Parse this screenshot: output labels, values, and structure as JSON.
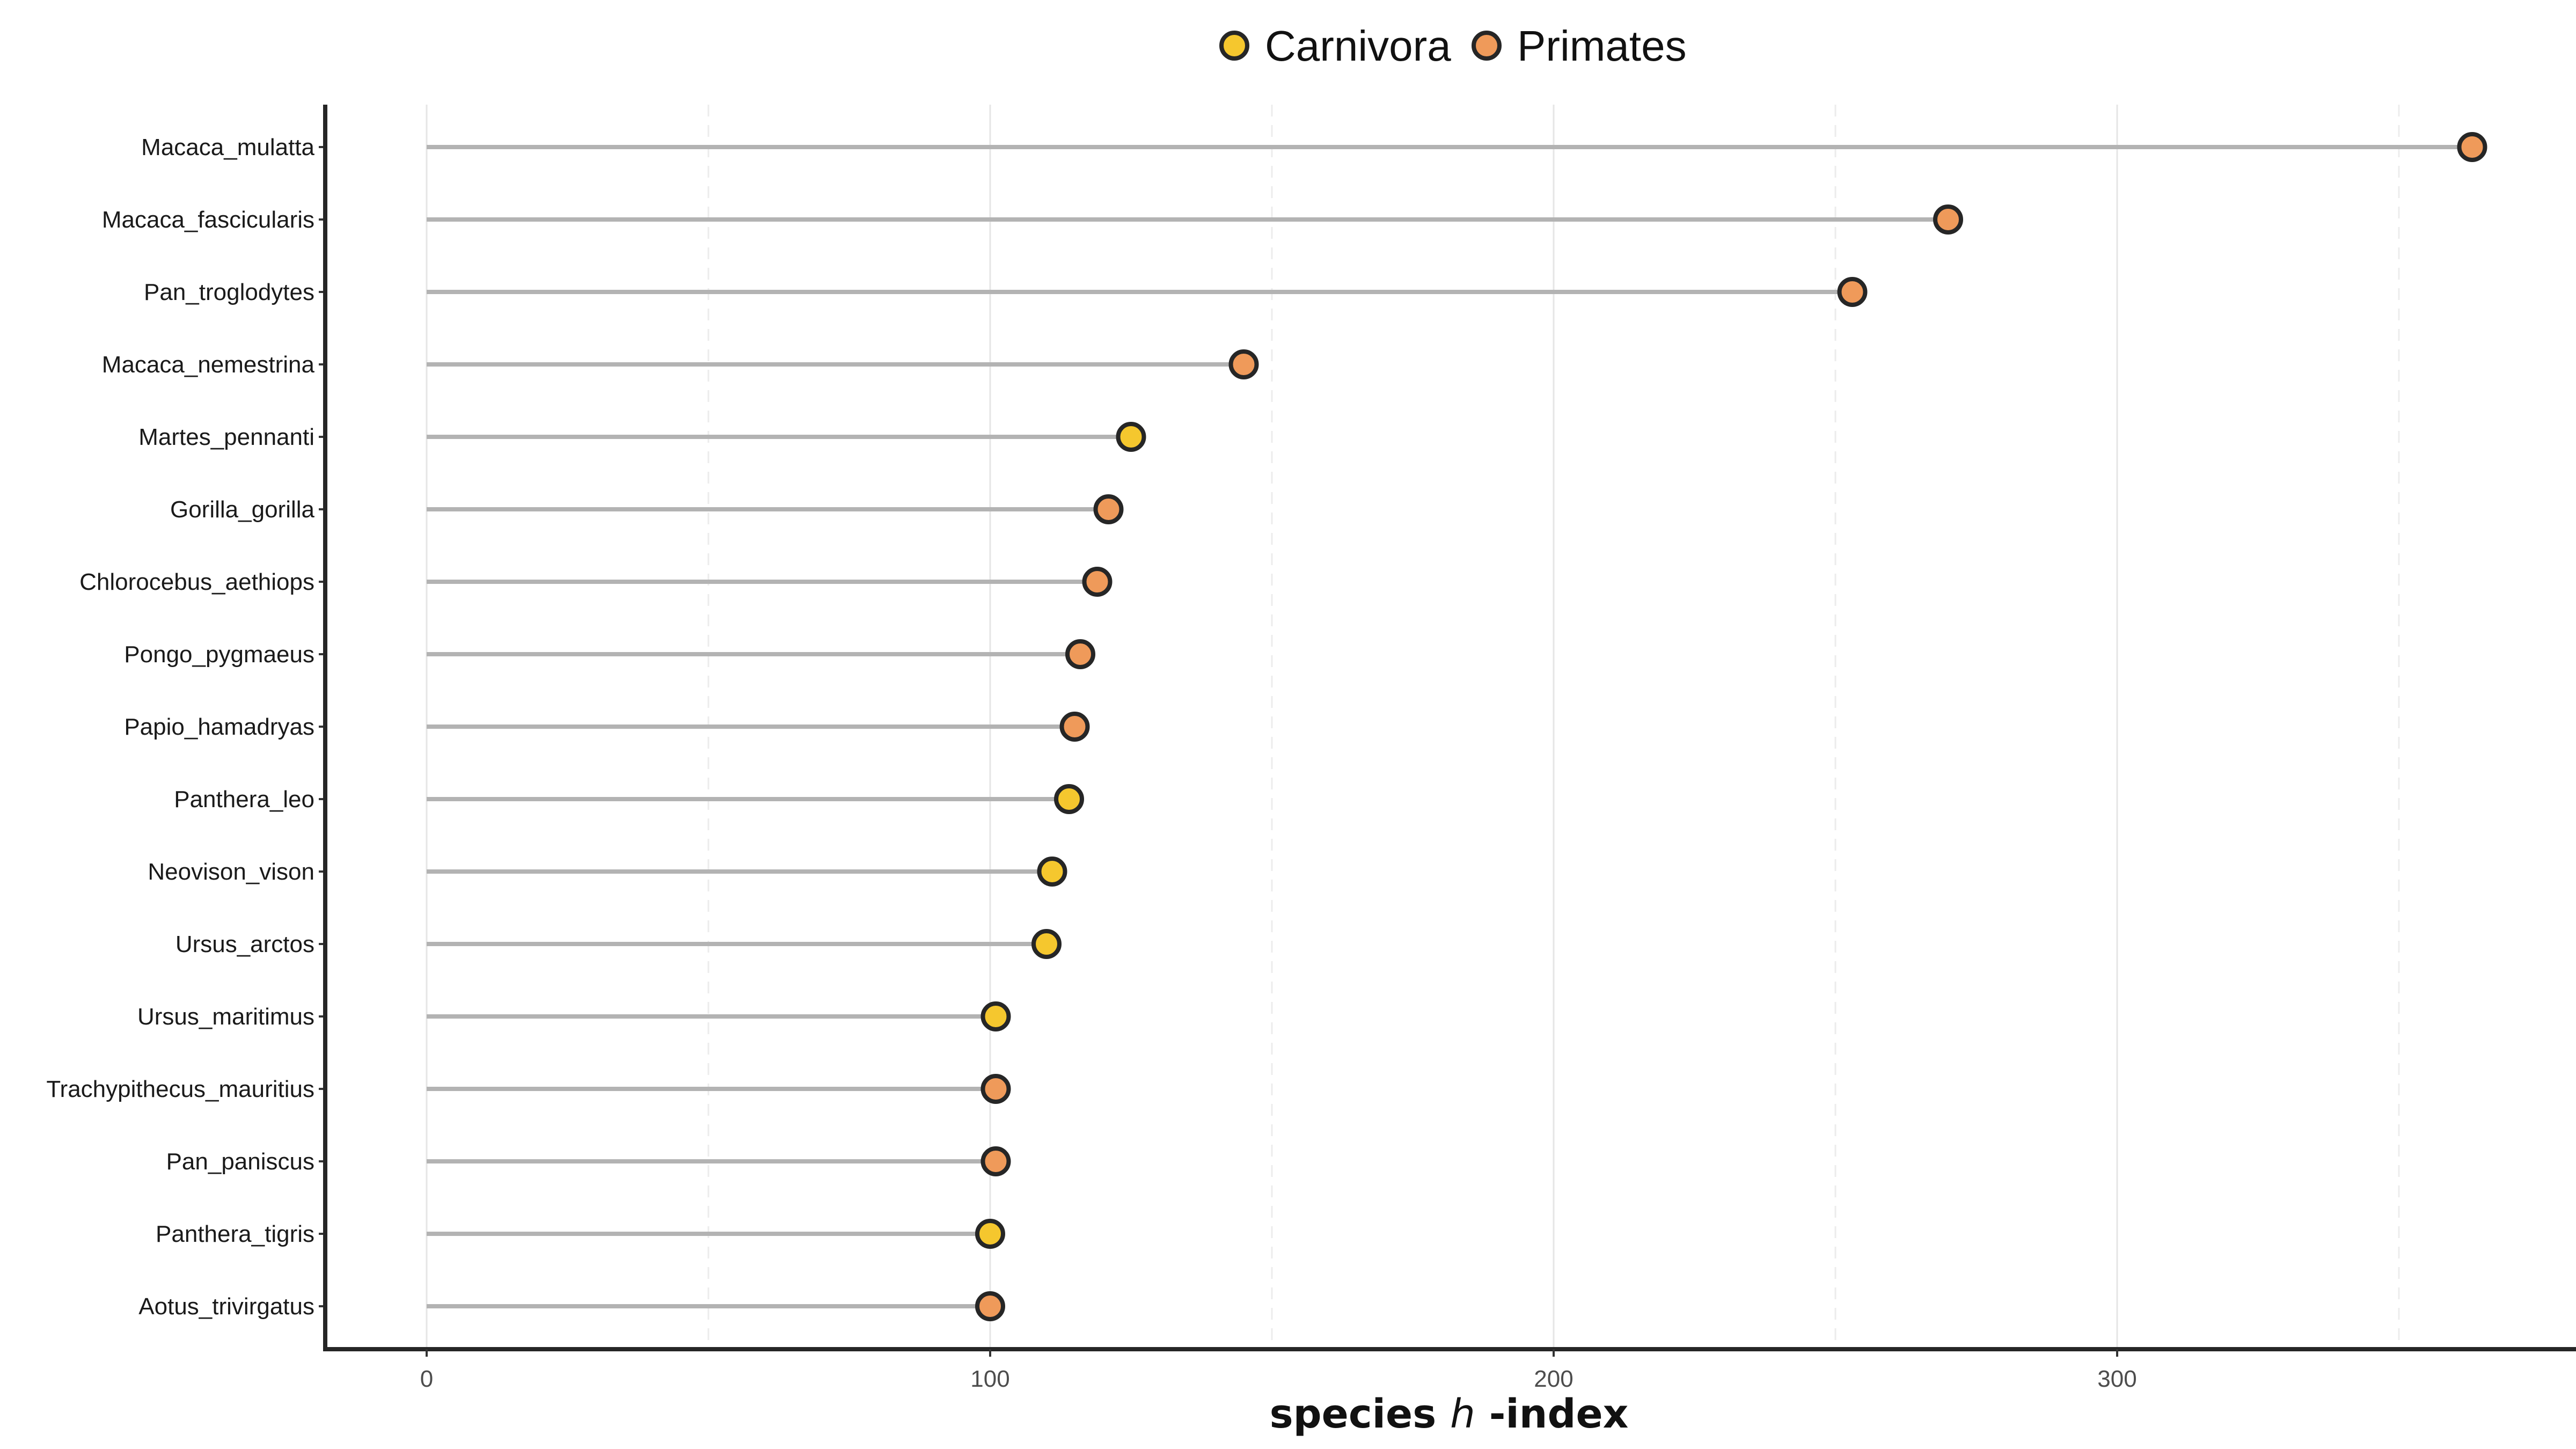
{
  "chart_data": {
    "type": "lollipop",
    "xlabel_prefix": "species ",
    "xlabel_italic": "h",
    "xlabel_suffix": " -index",
    "xlim": [
      -18,
      370
    ],
    "x_ticks": [
      0,
      100,
      200,
      300
    ],
    "x_minor_ticks": [
      50,
      150,
      250,
      350
    ],
    "grid": true,
    "legend_position": "top-center",
    "legend": [
      {
        "name": "Carnivora",
        "color": "#F5C72E"
      },
      {
        "name": "Primates",
        "color": "#EF9A5A"
      }
    ],
    "stem_color": "#b3b3b3",
    "points": [
      {
        "label": "Macaca_mulatta",
        "value": 363,
        "group": "Primates"
      },
      {
        "label": "Macaca_fascicularis",
        "value": 270,
        "group": "Primates"
      },
      {
        "label": "Pan_troglodytes",
        "value": 253,
        "group": "Primates"
      },
      {
        "label": "Macaca_nemestrina",
        "value": 145,
        "group": "Primates"
      },
      {
        "label": "Martes_pennanti",
        "value": 125,
        "group": "Carnivora"
      },
      {
        "label": "Gorilla_gorilla",
        "value": 121,
        "group": "Primates"
      },
      {
        "label": "Chlorocebus_aethiops",
        "value": 119,
        "group": "Primates"
      },
      {
        "label": "Pongo_pygmaeus",
        "value": 116,
        "group": "Primates"
      },
      {
        "label": "Papio_hamadryas",
        "value": 115,
        "group": "Primates"
      },
      {
        "label": "Panthera_leo",
        "value": 114,
        "group": "Carnivora"
      },
      {
        "label": "Neovison_vison",
        "value": 111,
        "group": "Carnivora"
      },
      {
        "label": "Ursus_arctos",
        "value": 110,
        "group": "Carnivora"
      },
      {
        "label": "Ursus_maritimus",
        "value": 101,
        "group": "Carnivora"
      },
      {
        "label": "Trachypithecus_mauritius",
        "value": 101,
        "group": "Primates"
      },
      {
        "label": "Pan_paniscus",
        "value": 101,
        "group": "Primates"
      },
      {
        "label": "Panthera_tigris",
        "value": 100,
        "group": "Carnivora"
      },
      {
        "label": "Aotus_trivirgatus",
        "value": 100,
        "group": "Primates"
      }
    ]
  }
}
